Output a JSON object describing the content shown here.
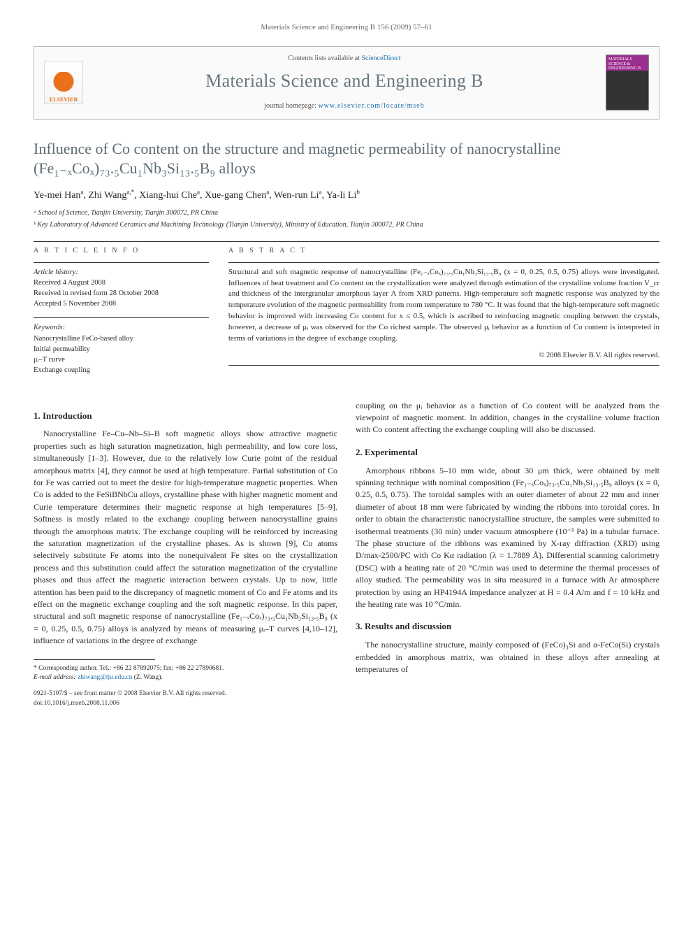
{
  "running_head": "Materials Science and Engineering B 156 (2009) 57–61",
  "header": {
    "contents_prefix": "Contents lists available at ",
    "contents_link": "ScienceDirect",
    "journal_name": "Materials Science and Engineering B",
    "homepage_prefix": "journal homepage: ",
    "homepage_url": "www.elsevier.com/locate/mseb",
    "elsevier_label": "ELSEVIER",
    "cover_text": "MATERIALS SCIENCE & ENGINEERING B"
  },
  "title": "Influence of Co content on the structure and magnetic permeability of nanocrystalline (Fe₁₋ₓCoₓ)₇₃.₅Cu₁Nb₃Si₁₃.₅B₉ alloys",
  "authors_html": "Ye-mei Han<sup>a</sup>, Zhi Wang<sup>a,*</sup>, Xiang-hui Che<sup>a</sup>, Xue-gang Chen<sup>a</sup>, Wen-run Li<sup>a</sup>, Ya-li Li<sup>b</sup>",
  "affiliations": [
    "ᵃ School of Science, Tianjin University, Tianjin 300072, PR China",
    "ᵇ Key Laboratory of Advanced Ceramics and Machining Technology (Tianjin University), Ministry of Education, Tianjin 300072, PR China"
  ],
  "article_info": {
    "heading": "A R T I C L E   I N F O",
    "history_label": "Article history:",
    "history": [
      "Received 4 August 2008",
      "Received in revised form 28 October 2008",
      "Accepted 5 November 2008"
    ],
    "keywords_label": "Keywords:",
    "keywords": [
      "Nanocrystalline FeCo-based alloy",
      "Initial permeability",
      "μᵢ–T curve",
      "Exchange coupling"
    ]
  },
  "abstract": {
    "heading": "A B S T R A C T",
    "text": "Structural and soft magnetic response of nanocrystalline (Fe₁₋ₓCoₓ)₇₃.₅Cu₁Nb₃Si₁₃.₅B₉ (x = 0, 0.25, 0.5, 0.75) alloys were investigated. Influences of heat treatment and Co content on the crystallization were analyzed through estimation of the crystalline volume fraction V_cr and thickness of the intergranular amorphous layer Λ from XRD patterns. High-temperature soft magnetic response was analyzed by the temperature evolution of the magnetic permeability from room temperature to 780 °C. It was found that the high-temperature soft magnetic behavior is improved with increasing Co content for x ≤ 0.5, which is ascribed to reinforcing magnetic coupling between the crystals, however, a decrease of μᵢ was observed for the Co richest sample. The observed μᵢ behavior as a function of Co content is interpreted in terms of variations in the degree of exchange coupling.",
    "copyright": "© 2008 Elsevier B.V. All rights reserved."
  },
  "sections": {
    "s1_heading": "1. Introduction",
    "s1_p1": "Nanocrystalline Fe–Cu–Nb–Si–B soft magnetic alloys show attractive magnetic properties such as high saturation magnetization, high permeability, and low core loss, simultaneously [1–3]. However, due to the relatively low Curie point of the residual amorphous matrix [4], they cannot be used at high temperature. Partial substitution of Co for Fe was carried out to meet the desire for high-temperature magnetic properties. When Co is added to the FeSiBNbCu alloys, crystalline phase with higher magnetic moment and Curie temperature determines their magnetic response at high temperatures [5–9]. Softness is mostly related to the exchange coupling between nanocrystalline grains through the amorphous matrix. The exchange coupling will be reinforced by increasing the saturation magnetization of the crystalline phases. As is shown [9], Co atoms selectively substitute Fe atoms into the nonequivalent Fe sites on the crystallization process and this substitution could affect the saturation magnetization of the crystalline phases and thus affect the magnetic interaction between crystals. Up to now, little attention has been paid to the discrepancy of magnetic moment of Co and Fe atoms and its effect on the magnetic exchange coupling and the soft magnetic response. In this paper, structural and soft magnetic response of nanocrystalline (Fe₁₋ₓCoₓ)₇₃.₅Cu₁Nb₃Si₁₃.₅B₉ (x = 0, 0.25, 0.5, 0.75) alloys is analyzed by means of measuring μᵢ–T curves [4,10–12], influence of variations in the degree of exchange",
    "s1_p1b": "coupling on the μᵢ behavior as a function of Co content will be analyzed from the viewpoint of magnetic moment. In addition, changes in the crystalline volume fraction with Co content affecting the exchange coupling will also be discussed.",
    "s2_heading": "2. Experimental",
    "s2_p1": "Amorphous ribbons 5–10 mm wide, about 30 μm thick, were obtained by melt spinning technique with nominal composition (Fe₁₋ₓCoₓ)₇₃.₅Cu₁Nb₃Si₁₃.₅B₉ alloys (x = 0, 0.25, 0.5, 0.75). The toroidal samples with an outer diameter of about 22 mm and inner diameter of about 18 mm were fabricated by winding the ribbons into toroidal cores. In order to obtain the characteristic nanocrystalline structure, the samples were submitted to isothermal treatments (30 min) under vacuum atmosphere (10⁻³ Pa) in a tubular furnace. The phase structure of the ribbons was examined by X-ray diffraction (XRD) using D/max-2500/PC with Co Kα radiation (λ = 1.7889 Å). Differential scanning calorimetry (DSC) with a heating rate of 20 °C/min was used to determine the thermal processes of alloy studied. The permeability was in situ measured in a furnace with Ar atmosphere protection by using an HP4194A impedance analyzer at H = 0.4 A/m and f = 10 kHz and the heating rate was 10 °C/min.",
    "s3_heading": "3. Results and discussion",
    "s3_p1": "The nanocrystalline structure, mainly composed of (FeCo)₃Si and α-FeCo(Si) crystals embedded in amorphous matrix, was obtained in these alloys after annealing at temperatures of"
  },
  "footnotes": {
    "corr": "* Corresponding author. Tel.: +86 22 87892075; fax: +86 22 27890681.",
    "email_label": "E-mail address:",
    "email": "zhiwang@tju.edu.cn",
    "email_suffix": "(Z. Wang)."
  },
  "footer": {
    "line1": "0921-5107/$ – see front matter © 2008 Elsevier B.V. All rights reserved.",
    "line2": "doi:10.1016/j.mseb.2008.11.006"
  },
  "colors": {
    "title_gray": "#5d6b74",
    "link_blue": "#1b6fae",
    "elsevier_orange": "#e9711c",
    "cover_purple": "#9b2f8f"
  }
}
